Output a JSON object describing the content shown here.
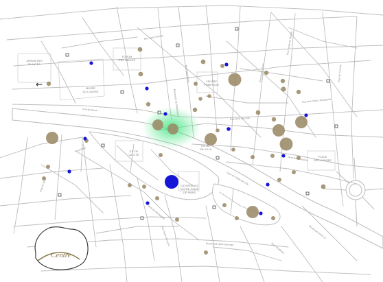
{
  "map": {
    "title": "",
    "colors": {
      "background": "#ffffff",
      "street": "#b9b9b9",
      "river_edge": "#bdbdbd",
      "river_fill": "#ffffff",
      "block_outline": "#cfcfcf",
      "marker_brown": "#9c8a68",
      "marker_blue": "#1616d6",
      "highlight_green": "#3be47c",
      "inset_outline": "#3a3a3a",
      "inset_river": "#8a7a4a",
      "inset_text": "#8a7448"
    },
    "area_labels": [
      {
        "text": "JARDIN DES PLANTES",
        "lines": [
          "JARDIN DES",
          "PLANTES"
        ]
      },
      {
        "text": "FORUM DES HALLES",
        "lines": [
          "FORUM",
          "DES HALLES"
        ]
      },
      {
        "text": "MUSÉE DU LOUVRE",
        "lines": [
          "MUSÉE",
          "DU LOUVRE"
        ]
      },
      {
        "text": "CENTRE POMPIDOU",
        "lines": [
          "CENTRE",
          "POMPIDOU"
        ]
      },
      {
        "text": "HOTEL DE VILLE",
        "lines": [
          "HOTEL",
          "DE VILLE"
        ]
      },
      {
        "text": "ÎLE DE LA CITÉ",
        "lines": [
          "ÎLE DE",
          "LA CITÉ"
        ]
      },
      {
        "text": "CATHÉDRALE NOTRE-DAME DE PARIS",
        "lines": [
          "CATHÉDRALE",
          "NOTRE-DAME",
          "DE PARIS"
        ]
      },
      {
        "text": "PLACE DES VOSGES",
        "lines": [
          "PLACE",
          "DES VOSGES"
        ]
      }
    ],
    "street_labels": [
      "Rue de Rivoli",
      "Quai du Louvre",
      "Rue Saint-Honoré",
      "Boulevard de Sébastopol",
      "Rue Saint-Denis",
      "Quai de la Mégisserie",
      "Rue de la Verrerie",
      "Rue des Archives",
      "Rue Saint-Antoine",
      "Quai de l'Hôtel de Ville",
      "Boulevard Saint-Germain",
      "Rue Saint-Jacques",
      "Rue de Turenne",
      "Rue Vieille du Temple",
      "Quai de Montebello",
      "Rue des Francs Bourgeois",
      "Pont Neuf",
      "Rue de Seine",
      "Quai d'Orléans",
      "Boulevard Henri IV"
    ],
    "back_arrow": {
      "glyph": "←",
      "icon": "arrow-left-icon"
    },
    "markers": {
      "brown": [
        {
          "name": "marker-halles-north",
          "size": "small"
        },
        {
          "name": "marker-rue-montorgueil",
          "size": "small"
        },
        {
          "name": "marker-pompidou",
          "size": "large"
        },
        {
          "name": "marker-marais-1",
          "size": "small"
        },
        {
          "name": "marker-marais-2",
          "size": "medium"
        },
        {
          "name": "marker-place-vosges",
          "size": "large"
        },
        {
          "name": "marker-saint-paul",
          "size": "large"
        },
        {
          "name": "marker-hotel-de-ville",
          "size": "large"
        },
        {
          "name": "marker-chatelet",
          "size": "large"
        },
        {
          "name": "marker-chatelet-2",
          "size": "large"
        },
        {
          "name": "marker-louvre-west",
          "size": "large"
        },
        {
          "name": "marker-notre-dame",
          "size": "large"
        },
        {
          "name": "marker-ile-saint-louis",
          "size": "large"
        },
        {
          "name": "marker-bastille",
          "size": "small"
        }
      ],
      "blue": [
        {
          "name": "marker-blue-nord"
        },
        {
          "name": "marker-blue-louvre"
        },
        {
          "name": "marker-blue-chatelet"
        },
        {
          "name": "marker-blue-marais"
        },
        {
          "name": "marker-blue-cite-large",
          "size": "large"
        },
        {
          "name": "marker-blue-saint-louis"
        }
      ]
    },
    "highlight": {
      "name": "selected-location",
      "label": ""
    },
    "inset": {
      "label": "Centre"
    }
  }
}
